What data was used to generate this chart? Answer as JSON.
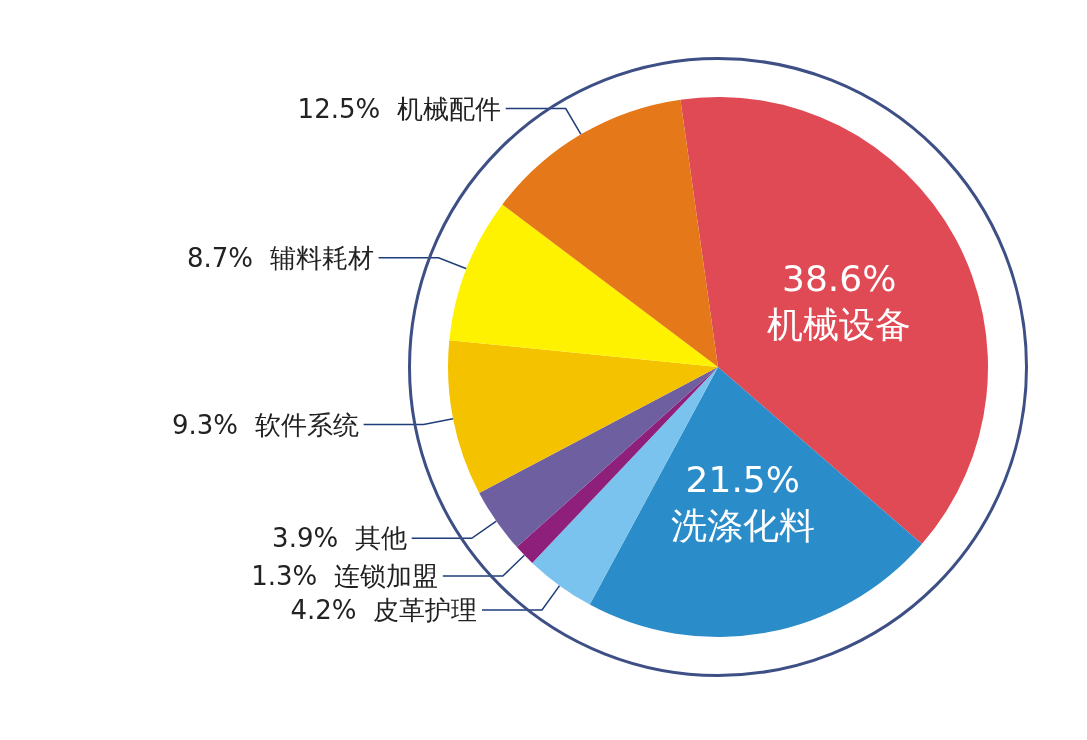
{
  "chart_data": {
    "type": "pie",
    "categories": [
      "机械设备",
      "洗涤化料",
      "皮革护理",
      "连锁加盟",
      "其他",
      "软件系统",
      "辅料耗材",
      "机械配件"
    ],
    "values": [
      38.6,
      21.5,
      4.2,
      1.3,
      3.9,
      9.3,
      8.7,
      12.5
    ],
    "value_labels": [
      "38.6%",
      "21.5%",
      "4.2%",
      "1.3%",
      "3.9%",
      "9.3%",
      "8.7%",
      "12.5%"
    ],
    "colors": [
      "#e04a55",
      "#2a8cc8",
      "#7ac3ee",
      "#8e1f7a",
      "#6e5fa0",
      "#f5c200",
      "#fff200",
      "#e57818"
    ],
    "legend": false
  }
}
